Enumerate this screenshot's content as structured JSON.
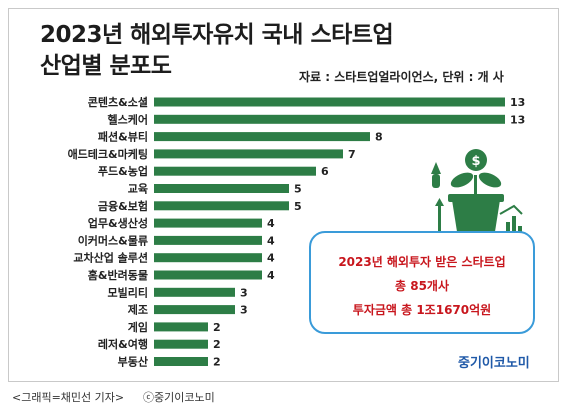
{
  "title_line1": "2023년 해외투자유치 국내 스타트업",
  "title_line2": "산업별 분포도",
  "source": "자료 : 스타트업얼라이언스, 단위 : 개 사",
  "callout": {
    "line1": "2023년 해외투자 받은 스타트업",
    "line2": "총 85개사",
    "line3": "투자금액 총 1조1670억원"
  },
  "logo": "중기이코노미",
  "credit_left": "<그래픽=채민선 기자>",
  "credit_right": "ⓒ중기이코노미",
  "colors": {
    "bar": "#2d7d46",
    "callout_border": "#3a9bd9",
    "callout_text": "#c8161d",
    "logo": "#1f59a8"
  },
  "icon": "plant-money-growth-icon",
  "chart_data": {
    "type": "bar",
    "orientation": "horizontal",
    "categories": [
      "콘텐츠&소셜",
      "헬스케어",
      "패션&뷰티",
      "애드테크&마케팅",
      "푸드&농업",
      "교육",
      "금융&보험",
      "업무&생산성",
      "이커머스&물류",
      "교차산업 솔루션",
      "홈&반려동물",
      "모빌리티",
      "제조",
      "게임",
      "레저&여행",
      "부동산"
    ],
    "values": [
      13,
      13,
      8,
      7,
      6,
      5,
      5,
      4,
      4,
      4,
      4,
      3,
      3,
      2,
      2,
      2
    ],
    "title": "2023년 해외투자유치 국내 스타트업 산업별 분포도",
    "xlim": [
      0,
      13
    ],
    "grid": false,
    "legend": "none"
  }
}
